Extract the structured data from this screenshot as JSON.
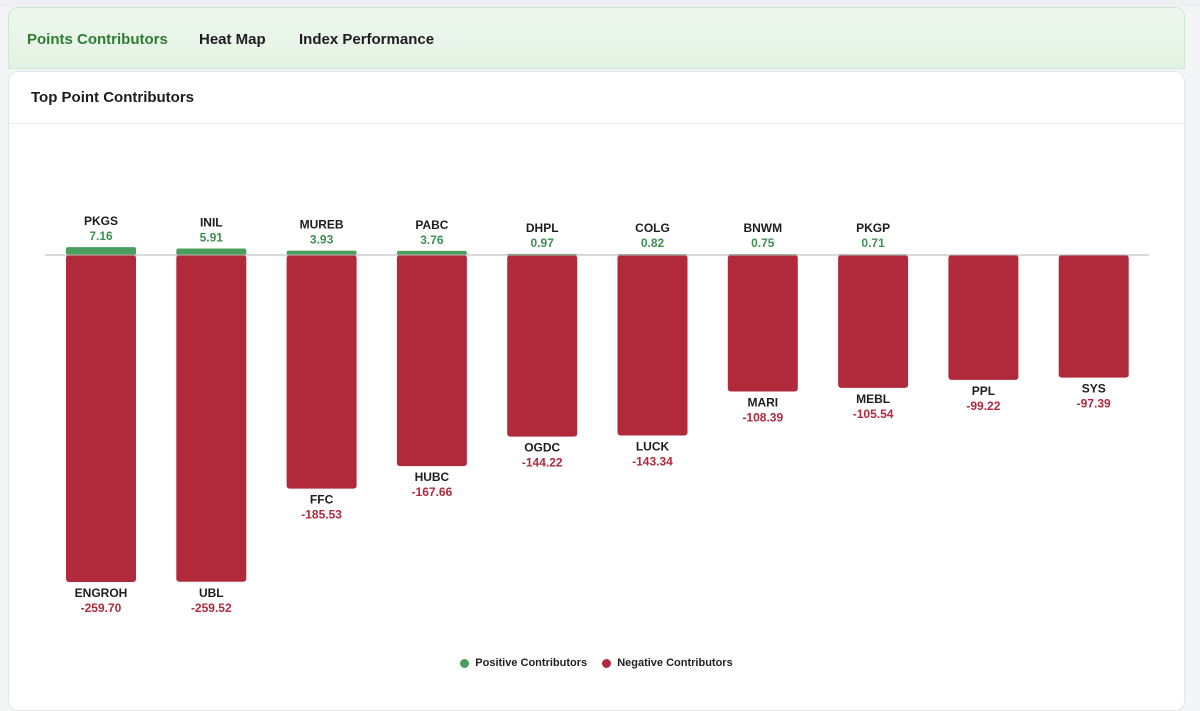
{
  "tabs": [
    {
      "label": "Points Contributors",
      "active": true
    },
    {
      "label": "Heat Map",
      "active": false
    },
    {
      "label": "Index Performance",
      "active": false
    }
  ],
  "card": {
    "title": "Top Point Contributors"
  },
  "legend": {
    "positive_label": "Positive Contributors",
    "negative_label": "Negative Contributors"
  },
  "colors": {
    "positive": "#4a9e5c",
    "negative": "#b02a3c",
    "positive_text": "#3d9150",
    "negative_text": "#b02a3c",
    "active_tab": "#2e7d32"
  },
  "chart_data": {
    "type": "bar",
    "title": "Top Point Contributors",
    "xlabel": "",
    "ylabel": "",
    "ylim": [
      -259.7,
      7.16
    ],
    "grid": false,
    "legend": "bottom-center",
    "series": [
      {
        "name": "Positive Contributors",
        "categories": [
          "PKGS",
          "INIL",
          "MUREB",
          "PABC",
          "DHPL",
          "COLG",
          "BNWM",
          "PKGP"
        ],
        "labels": [
          "7.16",
          "5.91",
          "3.93",
          "3.76",
          "0.97",
          "0.82",
          "0.75",
          "0.71"
        ],
        "values": [
          7.16,
          5.91,
          3.93,
          3.76,
          0.97,
          0.82,
          0.75,
          0.71
        ]
      },
      {
        "name": "Negative Contributors",
        "categories": [
          "ENGROH",
          "UBL",
          "FFC",
          "HUBC",
          "OGDC",
          "LUCK",
          "MARI",
          "MEBL",
          "PPL",
          "SYS"
        ],
        "labels": [
          "-259.70",
          "-259.52",
          "-185.53",
          "-167.66",
          "-144.22",
          "-143.34",
          "-108.39",
          "-105.54",
          "-99.22",
          "-97.39"
        ],
        "values": [
          -259.7,
          -259.52,
          -185.53,
          -167.66,
          -144.22,
          -143.34,
          -108.39,
          -105.54,
          -99.22,
          -97.39
        ]
      }
    ]
  }
}
